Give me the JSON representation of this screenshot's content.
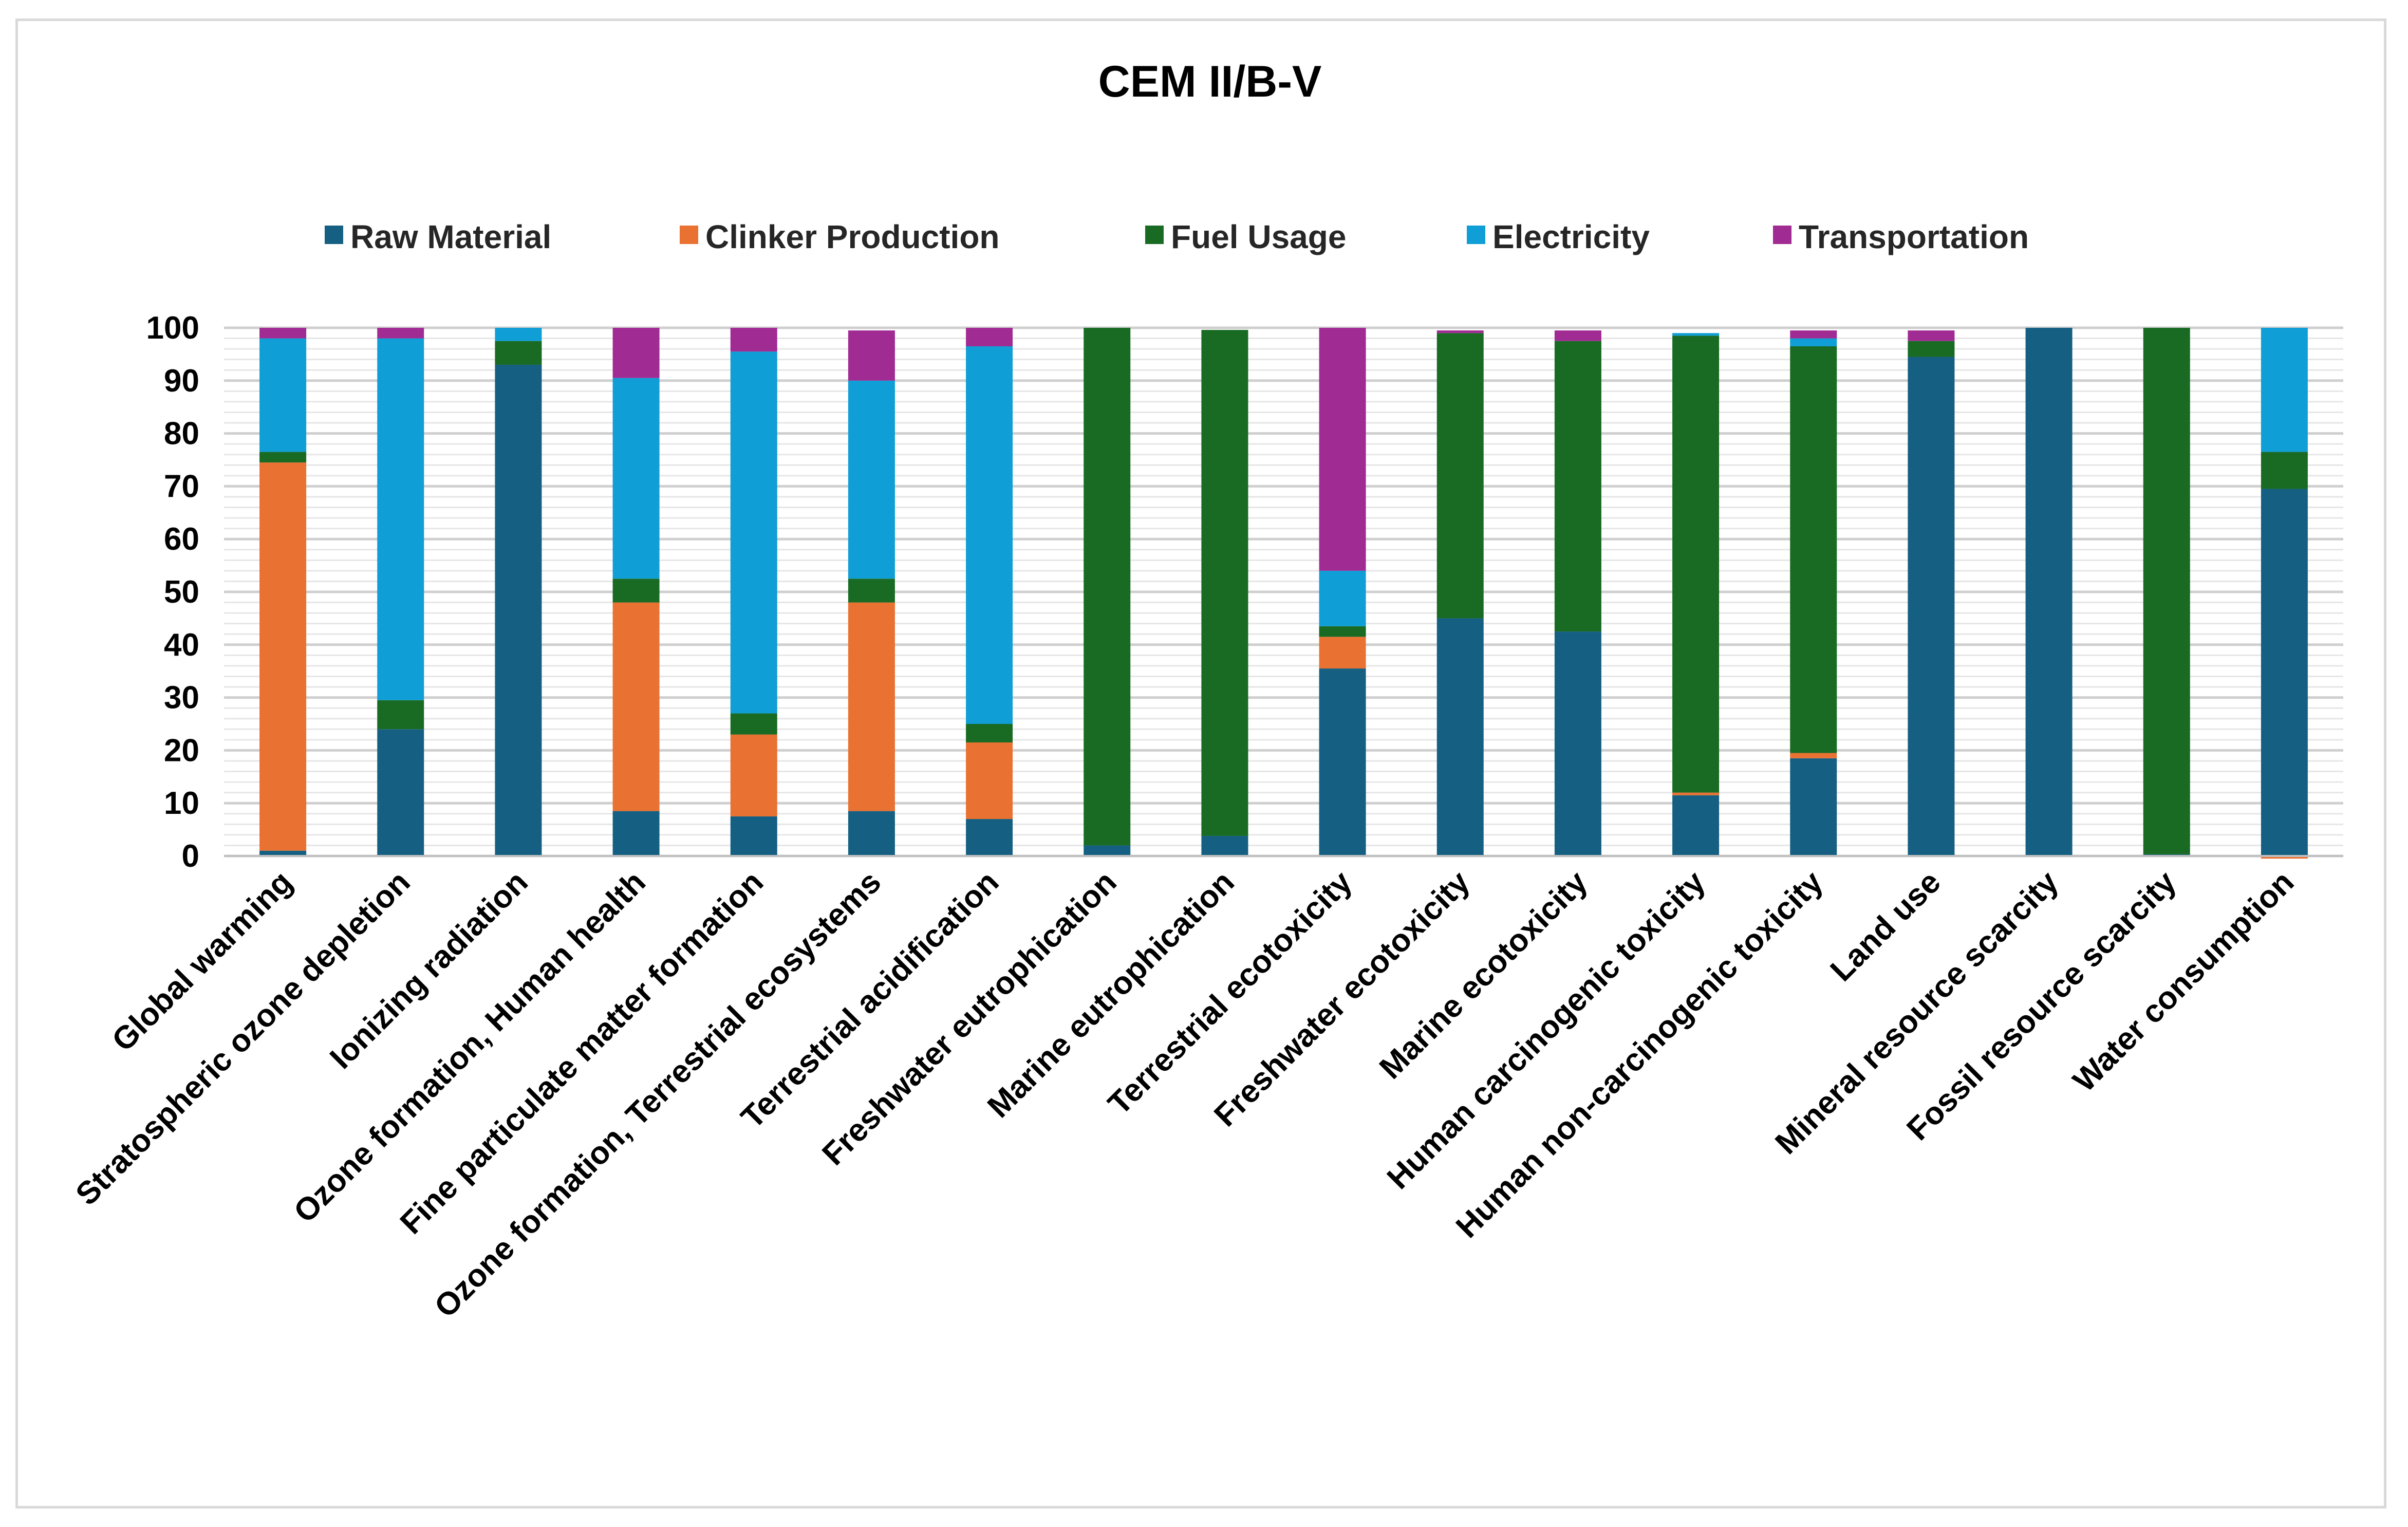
{
  "chart_data": {
    "type": "bar",
    "stacked": true,
    "title": "CEM II/B-V",
    "xlabel": "",
    "ylabel": "",
    "ylim": [
      0,
      100
    ],
    "yticks": [
      0,
      10,
      20,
      30,
      40,
      50,
      60,
      70,
      80,
      90,
      100
    ],
    "grid": true,
    "legend_position": "top",
    "categories": [
      "Global warming",
      "Stratospheric ozone depletion",
      "Ionizing radiation",
      "Ozone formation, Human health",
      "Fine particulate matter formation",
      "Ozone formation, Terrestrial ecosystems",
      "Terrestrial acidification",
      "Freshwater eutrophication",
      "Marine eutrophication",
      "Terrestrial ecotoxicity",
      "Freshwater ecotoxicity",
      "Marine ecotoxicity",
      "Human carcinogenic toxicity",
      "Human non-carcinogenic toxicity",
      "Land use",
      "Mineral resource scarcity",
      "Fossil resource scarcity",
      "Water consumption"
    ],
    "series": [
      {
        "name": "Raw Material",
        "color": "#156082",
        "values": [
          1,
          24,
          93,
          8.5,
          7.5,
          8.5,
          7,
          2,
          3.8,
          35.5,
          45,
          42.5,
          11.5,
          18.5,
          94.5,
          100,
          0.3,
          69.5
        ]
      },
      {
        "name": "Clinker Production",
        "color": "#e97132",
        "values": [
          73.5,
          0,
          0,
          39.5,
          15.5,
          39.5,
          14.5,
          0,
          0,
          6,
          0,
          0,
          0.5,
          1,
          0,
          0,
          0,
          -0.5
        ]
      },
      {
        "name": "Fuel Usage",
        "color": "#196b24",
        "values": [
          2,
          5.5,
          4.5,
          4.5,
          4,
          4.5,
          3.5,
          98,
          95.8,
          2,
          54,
          55,
          86.5,
          77,
          3,
          0,
          99.7,
          7
        ]
      },
      {
        "name": "Electricity",
        "color": "#0f9ed5",
        "values": [
          21.5,
          68.5,
          2.5,
          38,
          68.5,
          37.5,
          71.5,
          0,
          0,
          10.5,
          0,
          0,
          0.5,
          1.5,
          0,
          0,
          0,
          23.5
        ]
      },
      {
        "name": "Transportation",
        "color": "#a02b93",
        "values": [
          2,
          2,
          0,
          9.5,
          4.5,
          9.5,
          3.5,
          0,
          0,
          46,
          0.5,
          2,
          0,
          1.5,
          2,
          0,
          0,
          0
        ]
      }
    ]
  }
}
